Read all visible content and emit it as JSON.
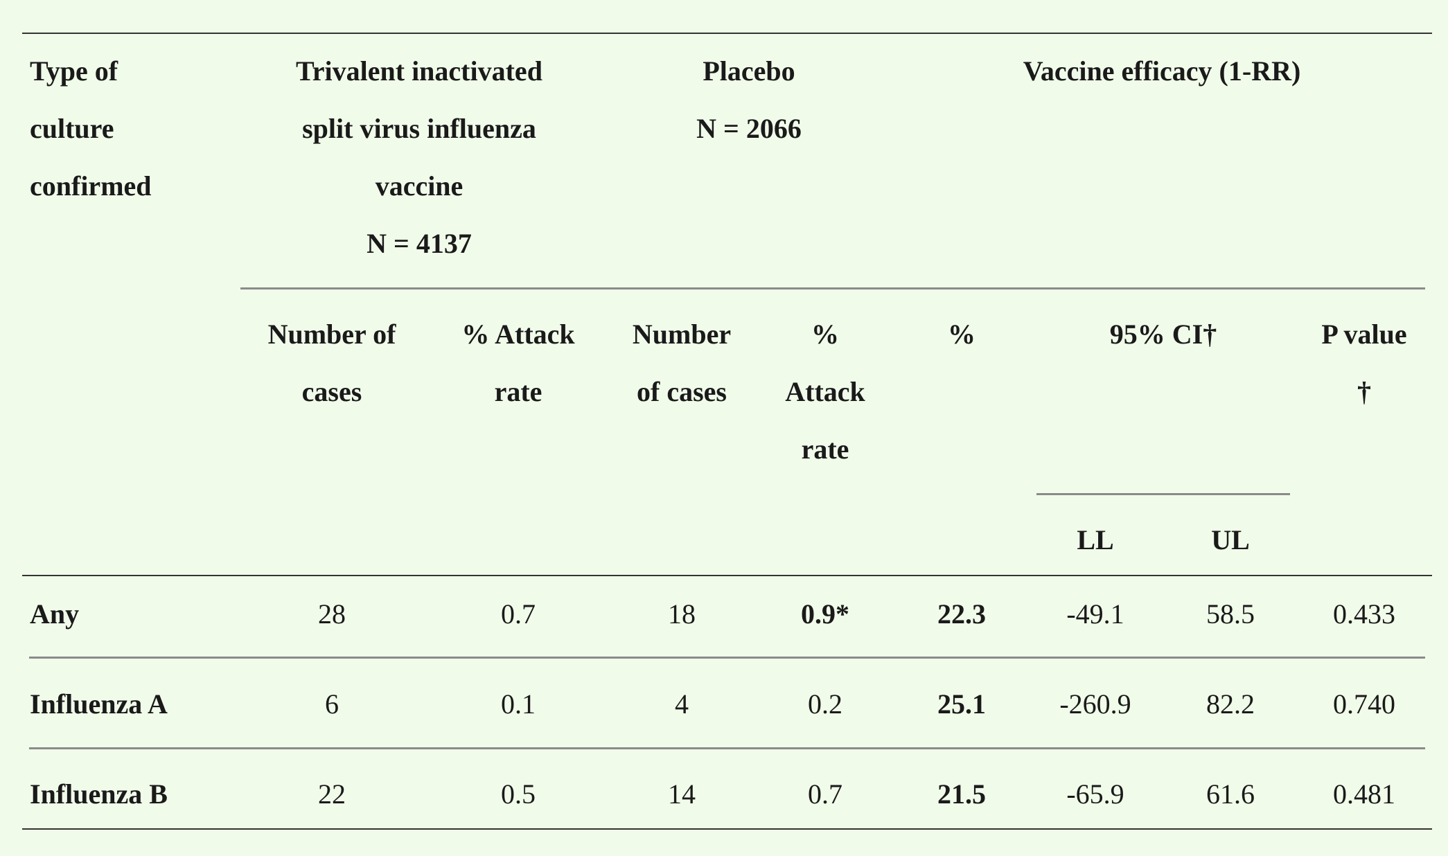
{
  "table": {
    "header": {
      "type_col": [
        "Type of",
        "culture",
        "confirmed"
      ],
      "vaccine": [
        "Trivalent inactivated",
        "split virus influenza",
        "vaccine",
        "N = 4137"
      ],
      "placebo": [
        "Placebo",
        "N = 2066"
      ],
      "efficacy": [
        "Vaccine efficacy (1-RR)"
      ]
    },
    "subheader": {
      "vac_cases": [
        "Number of",
        "cases"
      ],
      "vac_rate": [
        "% Attack",
        "rate"
      ],
      "pl_cases": [
        "Number",
        "of cases"
      ],
      "pl_rate": [
        "%",
        "Attack",
        "rate"
      ],
      "eff_pct": [
        "%"
      ],
      "ci": [
        "95% CI†"
      ],
      "p_value": [
        "P value",
        "†"
      ],
      "ll": "LL",
      "ul": "UL"
    },
    "rows": [
      [
        "Any",
        "28",
        "0.7",
        "18",
        "0.9*",
        "22.3",
        "-49.1",
        "58.5",
        "0.433"
      ],
      [
        "Influenza A",
        "6",
        "0.1",
        "4",
        "0.2",
        "25.1",
        "-260.9",
        "82.2",
        "0.740"
      ],
      [
        "Influenza B",
        "22",
        "0.5",
        "14",
        "0.7",
        "21.5",
        "-65.9",
        "61.6",
        "0.481"
      ]
    ]
  }
}
